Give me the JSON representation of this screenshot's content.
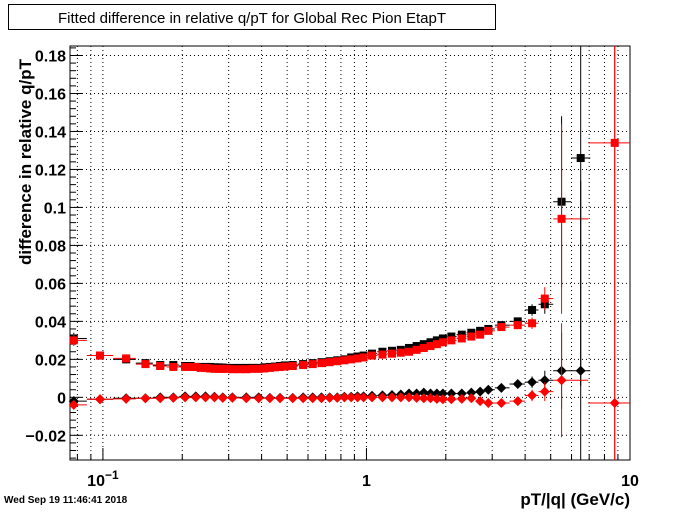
{
  "chart_data": {
    "type": "scatter",
    "title": "Fitted difference in relative q/pT for Global Rec Pion EtapT",
    "xlabel": "pT/|q| (GeV/c)",
    "ylabel": "difference in relative q/pT",
    "xscale": "log",
    "xlim": [
      0.075,
      10
    ],
    "ylim": [
      -0.033,
      0.185
    ],
    "x_tick_labels": [
      {
        "v": 0.1,
        "text": "10",
        "sup": "−1"
      },
      {
        "v": 1,
        "text": "1",
        "sup": ""
      },
      {
        "v": 10,
        "text": "10",
        "sup": ""
      }
    ],
    "y_tick_labels": [
      "−0.02",
      "0",
      "0.02",
      "0.04",
      "0.06",
      "0.08",
      "0.1",
      "0.12",
      "0.14",
      "0.16",
      "0.18"
    ],
    "grid": true,
    "series": [
      {
        "marker": "square",
        "color": "#000000",
        "points": [
          [
            0.0775,
            0.031,
            0.003
          ],
          [
            0.0975,
            0.022,
            0.002
          ],
          [
            0.1225,
            0.02,
            0.002
          ],
          [
            0.145,
            0.018,
            0.001
          ],
          [
            0.165,
            0.017,
            0.001
          ],
          [
            0.185,
            0.017,
            0.001
          ],
          [
            0.205,
            0.0165,
            0.001
          ],
          [
            0.215,
            0.0165,
            0.001
          ],
          [
            0.225,
            0.016,
            0.001
          ],
          [
            0.235,
            0.016,
            0.001
          ],
          [
            0.245,
            0.016,
            0.001
          ],
          [
            0.255,
            0.016,
            0.001
          ],
          [
            0.265,
            0.0158,
            0.001
          ],
          [
            0.275,
            0.0158,
            0.001
          ],
          [
            0.285,
            0.0157,
            0.001
          ],
          [
            0.295,
            0.0155,
            0.001
          ],
          [
            0.31,
            0.0155,
            0.001
          ],
          [
            0.33,
            0.0155,
            0.001
          ],
          [
            0.35,
            0.0155,
            0.001
          ],
          [
            0.37,
            0.0155,
            0.001
          ],
          [
            0.39,
            0.0155,
            0.001
          ],
          [
            0.41,
            0.0158,
            0.001
          ],
          [
            0.43,
            0.016,
            0.001
          ],
          [
            0.45,
            0.0162,
            0.001
          ],
          [
            0.47,
            0.0165,
            0.001
          ],
          [
            0.49,
            0.0168,
            0.001
          ],
          [
            0.525,
            0.017,
            0.001
          ],
          [
            0.575,
            0.0175,
            0.001
          ],
          [
            0.625,
            0.018,
            0.001
          ],
          [
            0.675,
            0.0185,
            0.001
          ],
          [
            0.725,
            0.019,
            0.001
          ],
          [
            0.775,
            0.0195,
            0.001
          ],
          [
            0.825,
            0.02,
            0.001
          ],
          [
            0.875,
            0.021,
            0.001
          ],
          [
            0.925,
            0.0215,
            0.001
          ],
          [
            0.975,
            0.022,
            0.001
          ],
          [
            1.05,
            0.023,
            0.001
          ],
          [
            1.15,
            0.024,
            0.001
          ],
          [
            1.25,
            0.0245,
            0.001
          ],
          [
            1.35,
            0.025,
            0.001
          ],
          [
            1.45,
            0.026,
            0.001
          ],
          [
            1.55,
            0.027,
            0.001
          ],
          [
            1.65,
            0.028,
            0.001
          ],
          [
            1.75,
            0.029,
            0.001
          ],
          [
            1.85,
            0.03,
            0.001
          ],
          [
            1.95,
            0.031,
            0.001
          ],
          [
            2.1,
            0.032,
            0.001
          ],
          [
            2.3,
            0.033,
            0.001
          ],
          [
            2.5,
            0.034,
            0.001
          ],
          [
            2.7,
            0.035,
            0.0015
          ],
          [
            2.9,
            0.036,
            0.0015
          ],
          [
            3.25,
            0.038,
            0.002
          ],
          [
            3.75,
            0.04,
            0.002
          ],
          [
            4.25,
            0.046,
            0.003
          ],
          [
            4.75,
            0.049,
            0.005
          ],
          [
            5.5,
            0.103,
            0.045
          ],
          [
            6.5,
            0.126,
            0.12
          ]
        ]
      },
      {
        "marker": "square",
        "color": "#ff0000",
        "points": [
          [
            0.0775,
            0.03,
            0.003
          ],
          [
            0.0975,
            0.022,
            0.002
          ],
          [
            0.1225,
            0.0205,
            0.002
          ],
          [
            0.145,
            0.0175,
            0.001
          ],
          [
            0.165,
            0.0165,
            0.001
          ],
          [
            0.185,
            0.016,
            0.001
          ],
          [
            0.205,
            0.016,
            0.001
          ],
          [
            0.215,
            0.016,
            0.001
          ],
          [
            0.225,
            0.016,
            0.001
          ],
          [
            0.235,
            0.0155,
            0.001
          ],
          [
            0.245,
            0.0155,
            0.001
          ],
          [
            0.255,
            0.0152,
            0.001
          ],
          [
            0.265,
            0.015,
            0.001
          ],
          [
            0.275,
            0.015,
            0.001
          ],
          [
            0.285,
            0.015,
            0.001
          ],
          [
            0.295,
            0.015,
            0.001
          ],
          [
            0.31,
            0.0148,
            0.001
          ],
          [
            0.33,
            0.0148,
            0.001
          ],
          [
            0.35,
            0.0148,
            0.001
          ],
          [
            0.37,
            0.015,
            0.001
          ],
          [
            0.39,
            0.015,
            0.001
          ],
          [
            0.41,
            0.0152,
            0.001
          ],
          [
            0.43,
            0.0155,
            0.001
          ],
          [
            0.45,
            0.0158,
            0.001
          ],
          [
            0.47,
            0.016,
            0.001
          ],
          [
            0.49,
            0.0162,
            0.001
          ],
          [
            0.525,
            0.0165,
            0.001
          ],
          [
            0.575,
            0.017,
            0.001
          ],
          [
            0.625,
            0.0175,
            0.001
          ],
          [
            0.675,
            0.018,
            0.001
          ],
          [
            0.725,
            0.0185,
            0.001
          ],
          [
            0.775,
            0.019,
            0.001
          ],
          [
            0.825,
            0.0195,
            0.001
          ],
          [
            0.875,
            0.02,
            0.001
          ],
          [
            0.925,
            0.0205,
            0.001
          ],
          [
            0.975,
            0.021,
            0.001
          ],
          [
            1.05,
            0.022,
            0.001
          ],
          [
            1.15,
            0.0225,
            0.001
          ],
          [
            1.25,
            0.023,
            0.001
          ],
          [
            1.35,
            0.0235,
            0.001
          ],
          [
            1.45,
            0.024,
            0.001
          ],
          [
            1.55,
            0.025,
            0.001
          ],
          [
            1.65,
            0.026,
            0.001
          ],
          [
            1.75,
            0.027,
            0.001
          ],
          [
            1.85,
            0.028,
            0.001
          ],
          [
            1.95,
            0.029,
            0.001
          ],
          [
            2.1,
            0.03,
            0.001
          ],
          [
            2.3,
            0.031,
            0.001
          ],
          [
            2.5,
            0.032,
            0.001
          ],
          [
            2.7,
            0.033,
            0.0015
          ],
          [
            2.9,
            0.035,
            0.0015
          ],
          [
            3.25,
            0.037,
            0.002
          ],
          [
            3.75,
            0.038,
            0.002
          ],
          [
            4.25,
            0.039,
            0.003
          ],
          [
            4.75,
            0.052,
            0.006
          ],
          [
            5.5,
            0.094,
            0.05
          ],
          [
            8.75,
            0.134,
            0.2
          ]
        ]
      },
      {
        "marker": "diamond",
        "color": "#000000",
        "points": [
          [
            0.0775,
            -0.002,
            0.002
          ],
          [
            0.0975,
            -0.001,
            0.001
          ],
          [
            0.1225,
            -0.0005,
            0.001
          ],
          [
            0.145,
            -0.0005,
            0.001
          ],
          [
            0.165,
            0.0,
            0.001
          ],
          [
            0.185,
            0.0,
            0.001
          ],
          [
            0.205,
            0.0005,
            0.001
          ],
          [
            0.225,
            0.0005,
            0.001
          ],
          [
            0.245,
            0.0005,
            0.001
          ],
          [
            0.265,
            0.0003,
            0.001
          ],
          [
            0.285,
            0.0,
            0.001
          ],
          [
            0.31,
            0.0,
            0.001
          ],
          [
            0.35,
            0.0,
            0.001
          ],
          [
            0.39,
            0.0,
            0.001
          ],
          [
            0.43,
            -0.0003,
            0.001
          ],
          [
            0.47,
            -0.0003,
            0.001
          ],
          [
            0.525,
            -0.0003,
            0.001
          ],
          [
            0.575,
            0.0,
            0.001
          ],
          [
            0.625,
            0.0,
            0.001
          ],
          [
            0.675,
            0.0,
            0.001
          ],
          [
            0.725,
            0.0,
            0.001
          ],
          [
            0.775,
            0.0,
            0.001
          ],
          [
            0.825,
            0.0003,
            0.001
          ],
          [
            0.875,
            0.0003,
            0.001
          ],
          [
            0.925,
            0.0005,
            0.001
          ],
          [
            0.975,
            0.0005,
            0.001
          ],
          [
            1.05,
            0.0008,
            0.001
          ],
          [
            1.15,
            0.001,
            0.001
          ],
          [
            1.25,
            0.0012,
            0.001
          ],
          [
            1.35,
            0.0015,
            0.001
          ],
          [
            1.45,
            0.002,
            0.001
          ],
          [
            1.55,
            0.002,
            0.001
          ],
          [
            1.65,
            0.0025,
            0.001
          ],
          [
            1.75,
            0.002,
            0.001
          ],
          [
            1.85,
            0.002,
            0.001
          ],
          [
            1.95,
            0.002,
            0.001
          ],
          [
            2.1,
            0.002,
            0.001
          ],
          [
            2.3,
            0.002,
            0.001
          ],
          [
            2.5,
            0.0025,
            0.001
          ],
          [
            2.7,
            0.003,
            0.0015
          ],
          [
            2.9,
            0.004,
            0.0015
          ],
          [
            3.25,
            0.005,
            0.002
          ],
          [
            3.75,
            0.007,
            0.002
          ],
          [
            4.25,
            0.008,
            0.003
          ],
          [
            4.75,
            0.009,
            0.005
          ],
          [
            5.5,
            0.014,
            0.02
          ],
          [
            6.5,
            0.014,
            0.1
          ]
        ]
      },
      {
        "marker": "diamond",
        "color": "#ff0000",
        "points": [
          [
            0.0775,
            -0.004,
            0.002
          ],
          [
            0.0975,
            -0.001,
            0.001
          ],
          [
            0.1225,
            -0.0008,
            0.001
          ],
          [
            0.145,
            -0.0005,
            0.001
          ],
          [
            0.165,
            -0.0005,
            0.001
          ],
          [
            0.185,
            -0.0003,
            0.001
          ],
          [
            0.205,
            0.0,
            0.001
          ],
          [
            0.225,
            0.0,
            0.001
          ],
          [
            0.245,
            0.0,
            0.001
          ],
          [
            0.265,
            0.0,
            0.001
          ],
          [
            0.285,
            -0.0003,
            0.001
          ],
          [
            0.31,
            -0.0003,
            0.001
          ],
          [
            0.35,
            -0.0005,
            0.001
          ],
          [
            0.39,
            -0.0005,
            0.001
          ],
          [
            0.43,
            -0.0005,
            0.001
          ],
          [
            0.47,
            -0.0005,
            0.001
          ],
          [
            0.525,
            -0.0005,
            0.001
          ],
          [
            0.575,
            -0.0005,
            0.001
          ],
          [
            0.625,
            -0.0005,
            0.001
          ],
          [
            0.675,
            -0.0005,
            0.001
          ],
          [
            0.725,
            -0.0003,
            0.001
          ],
          [
            0.775,
            -0.0003,
            0.001
          ],
          [
            0.825,
            0.0,
            0.001
          ],
          [
            0.875,
            0.0,
            0.001
          ],
          [
            0.925,
            0.0,
            0.001
          ],
          [
            0.975,
            0.0,
            0.001
          ],
          [
            1.05,
            0.0,
            0.001
          ],
          [
            1.15,
            0.0,
            0.001
          ],
          [
            1.25,
            0.0,
            0.001
          ],
          [
            1.35,
            0.0,
            0.001
          ],
          [
            1.45,
            0.0,
            0.001
          ],
          [
            1.55,
            -0.0003,
            0.001
          ],
          [
            1.65,
            -0.0005,
            0.001
          ],
          [
            1.75,
            -0.0005,
            0.001
          ],
          [
            1.85,
            -0.0008,
            0.001
          ],
          [
            1.95,
            -0.001,
            0.001
          ],
          [
            2.1,
            -0.001,
            0.001
          ],
          [
            2.3,
            -0.0008,
            0.001
          ],
          [
            2.5,
            -0.0005,
            0.001
          ],
          [
            2.7,
            -0.002,
            0.0015
          ],
          [
            2.9,
            -0.003,
            0.0015
          ],
          [
            3.25,
            -0.003,
            0.002
          ],
          [
            3.75,
            -0.002,
            0.002
          ],
          [
            4.25,
            0.001,
            0.003
          ],
          [
            4.75,
            0.003,
            0.005
          ],
          [
            5.5,
            0.009,
            0.03
          ],
          [
            8.75,
            -0.003,
            0.2
          ]
        ]
      }
    ]
  },
  "timestamp": "Wed Sep 19 11:46:41 2018"
}
